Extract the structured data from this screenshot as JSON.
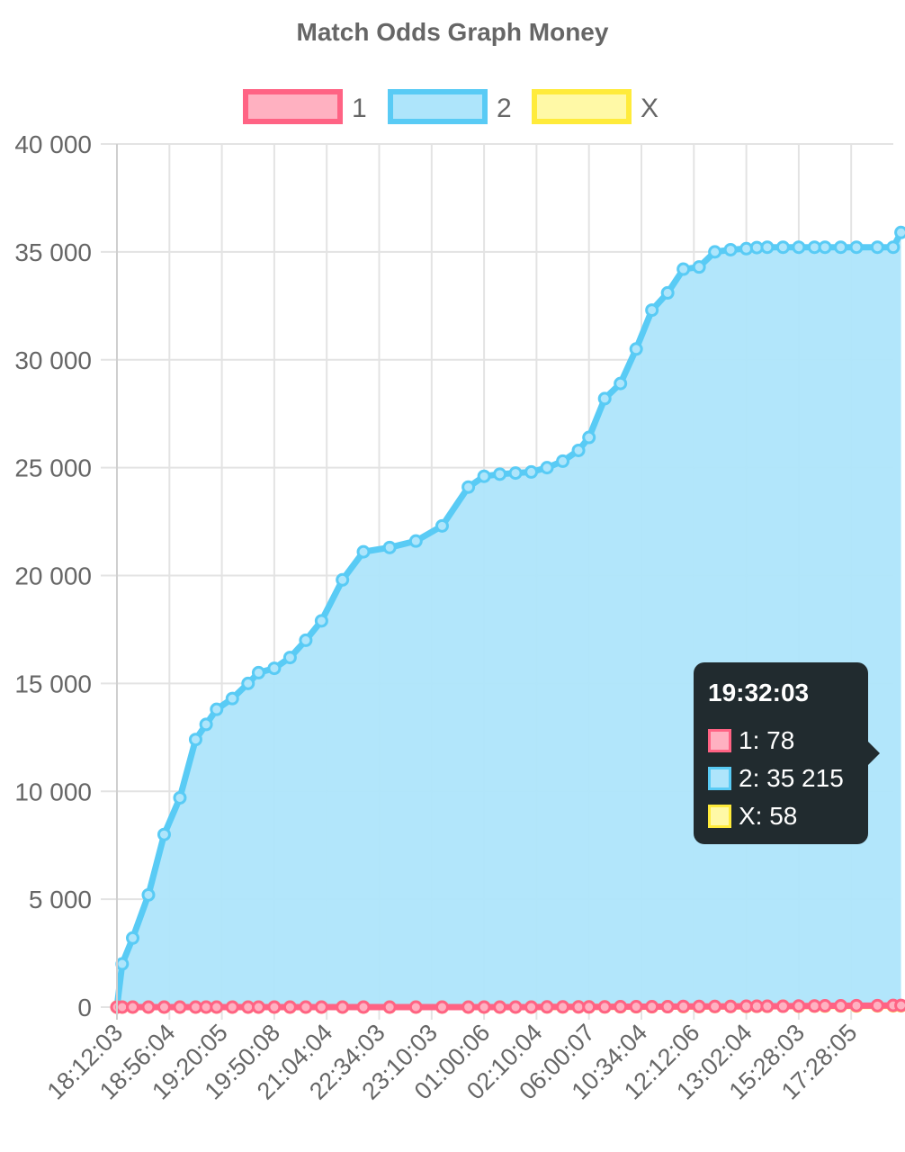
{
  "chart_data": {
    "type": "area",
    "title": "Match Odds Graph Money",
    "legend_position": "top-center",
    "grid": true,
    "ylim": [
      0,
      40000
    ],
    "yticks": [
      "40 000",
      "35 000",
      "30 000",
      "25 000",
      "20 000",
      "15 000",
      "10 000",
      "5 000",
      "0"
    ],
    "x_tick_labels": [
      "18:12:03",
      "18:56:04",
      "19:20:05",
      "19:50:08",
      "21:04:04",
      "22:34:03",
      "23:10:03",
      "01:00:06",
      "02:10:04",
      "06:00:07",
      "10:34:04",
      "12:12:06",
      "13:02:04",
      "15:28:03",
      "17:28:05"
    ],
    "x": [
      0,
      0.1,
      0.3,
      0.6,
      0.9,
      1.2,
      1.5,
      1.7,
      1.9,
      2.2,
      2.5,
      2.7,
      3.0,
      3.3,
      3.6,
      3.9,
      4.3,
      4.7,
      5.2,
      5.7,
      6.2,
      6.7,
      7.0,
      7.3,
      7.6,
      7.9,
      8.2,
      8.5,
      8.8,
      9.0,
      9.3,
      9.6,
      9.9,
      10.2,
      10.5,
      10.8,
      11.1,
      11.4,
      11.7,
      12.0,
      12.2,
      12.4,
      12.7,
      13.0,
      13.3,
      13.5,
      13.8,
      14.1,
      14.5,
      14.8,
      14.95
    ],
    "series": [
      {
        "name": "1",
        "color": "#ff6384",
        "fill": "#ffb1c1",
        "values": [
          0,
          0,
          0,
          0,
          0,
          0,
          0,
          0,
          0,
          0,
          0,
          0,
          0,
          0,
          0,
          0,
          0,
          0,
          0,
          0,
          0,
          0,
          0,
          0,
          0,
          0,
          10,
          10,
          10,
          10,
          10,
          20,
          20,
          20,
          20,
          30,
          30,
          30,
          30,
          40,
          40,
          40,
          40,
          50,
          50,
          60,
          60,
          70,
          70,
          78,
          78
        ]
      },
      {
        "name": "2",
        "color": "#59cbf5",
        "fill": "#aee5fb",
        "values": [
          0,
          2000,
          3200,
          5200,
          8000,
          9700,
          12400,
          13100,
          13800,
          14300,
          15000,
          15500,
          15700,
          16200,
          17000,
          17900,
          19800,
          21100,
          21300,
          21600,
          22300,
          24100,
          24600,
          24700,
          24750,
          24800,
          25000,
          25300,
          25800,
          26400,
          28200,
          28900,
          30500,
          32300,
          33100,
          34200,
          34300,
          35000,
          35100,
          35150,
          35200,
          35215,
          35215,
          35215,
          35215,
          35215,
          35215,
          35215,
          35215,
          35215,
          35900
        ]
      },
      {
        "name": "X",
        "color": "#ffeb3b",
        "fill": "#fff9a6",
        "values": [
          0,
          0,
          0,
          0,
          0,
          0,
          0,
          0,
          0,
          0,
          0,
          0,
          0,
          0,
          0,
          0,
          0,
          0,
          0,
          0,
          0,
          0,
          0,
          0,
          0,
          0,
          5,
          5,
          10,
          10,
          10,
          15,
          15,
          15,
          20,
          20,
          25,
          25,
          30,
          30,
          35,
          35,
          40,
          40,
          45,
          45,
          50,
          50,
          55,
          58,
          58
        ]
      }
    ]
  },
  "legend": {
    "items": [
      {
        "label": "1",
        "stroke": "#ff6384",
        "fill": "#ffb1c1"
      },
      {
        "label": "2",
        "stroke": "#59cbf5",
        "fill": "#aee5fb"
      },
      {
        "label": "X",
        "stroke": "#ffeb3b",
        "fill": "#fff9a6"
      }
    ]
  },
  "tooltip": {
    "title": "19:32:03",
    "rows": [
      {
        "label": "1: 78",
        "stroke": "#ff6384",
        "fill": "#ffb1c1"
      },
      {
        "label": "2: 35 215",
        "stroke": "#59cbf5",
        "fill": "#aee5fb"
      },
      {
        "label": "X: 58",
        "stroke": "#ffeb3b",
        "fill": "#fff9a6"
      }
    ]
  }
}
